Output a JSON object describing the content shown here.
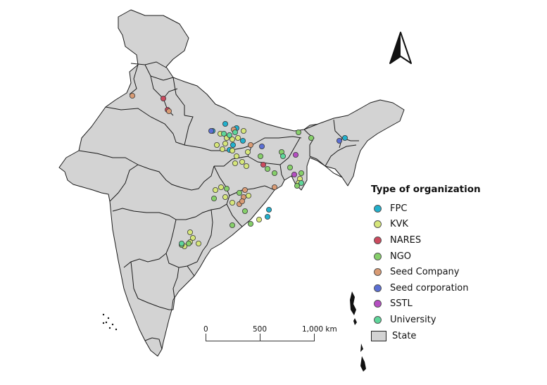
{
  "legend": {
    "title": "Type of organization",
    "items": [
      {
        "label": "FPC",
        "color": "#22b0cc"
      },
      {
        "label": "KVK",
        "color": "#d6e67a"
      },
      {
        "label": "NARES",
        "color": "#cc4a5e"
      },
      {
        "label": "NGO",
        "color": "#86cf6a"
      },
      {
        "label": "Seed Company",
        "color": "#d99b74"
      },
      {
        "label": "Seed corporation",
        "color": "#5b6fd4"
      },
      {
        "label": "SSTL",
        "color": "#b54ec2"
      },
      {
        "label": "University",
        "color": "#5ed69a"
      }
    ],
    "state_label": "State",
    "state_color": "#d3d3d3"
  },
  "scalebar": {
    "labels": [
      "0",
      "500",
      "1,000 km"
    ]
  },
  "north_arrow": "north-arrow-icon"
}
